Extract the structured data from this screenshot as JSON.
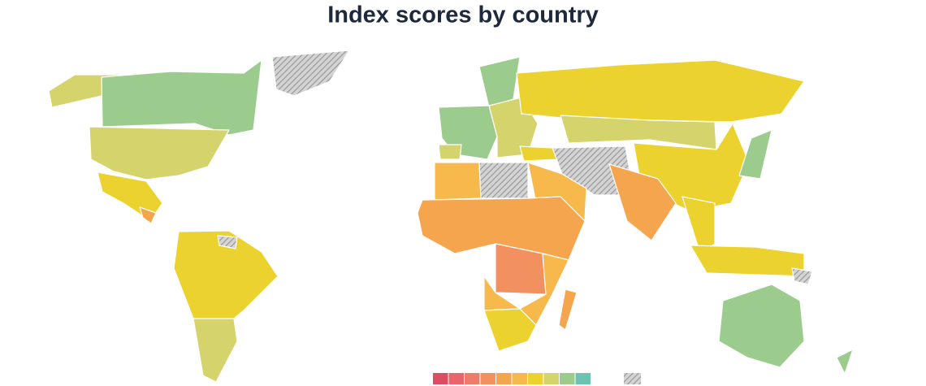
{
  "title": "Index scores by country",
  "legend": {
    "colors": [
      "#dc4f62",
      "#e8656b",
      "#ef7c6a",
      "#f2905f",
      "#f6a54f",
      "#f7b84c",
      "#ecd22f",
      "#d5d36c",
      "#9ccb8e",
      "#6cc3b2"
    ],
    "no_data_color": "#9a9a9a"
  }
}
